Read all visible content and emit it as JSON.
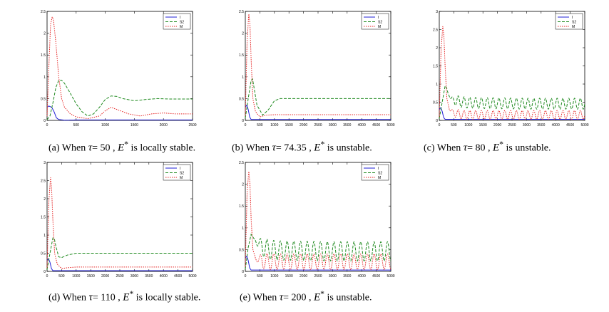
{
  "colors": {
    "I": "#1f1fd6",
    "S2": "#1f8a1f",
    "M": "#e52222",
    "axis": "#000000"
  },
  "chart_data": [
    {
      "type": "line",
      "xlim": [
        0,
        2500
      ],
      "ylim": [
        0,
        2.5
      ],
      "xticks": [
        0,
        500,
        1000,
        1500,
        2000,
        2500
      ],
      "xtick_labels": [
        "0",
        "500",
        "1000",
        "1500",
        "2000",
        "2500"
      ],
      "yticks": [
        0,
        0.5,
        1,
        1.5,
        2,
        2.5
      ],
      "ytick_labels": [
        "0",
        "0.5",
        "1",
        "1.5",
        "2",
        "2.5"
      ],
      "legend_position": "top-right",
      "series": [
        {
          "name": "I",
          "x": [
            0,
            30,
            80,
            120,
            160,
            200,
            300,
            500,
            2500
          ],
          "y": [
            0.3,
            0.33,
            0.3,
            0.2,
            0.06,
            0.02,
            0.005,
            0.01,
            0.01
          ]
        },
        {
          "name": "S2",
          "x": [
            0,
            50,
            100,
            150,
            200,
            250,
            300,
            400,
            500,
            600,
            700,
            800,
            900,
            1000,
            1100,
            1200,
            1300,
            1500,
            1700,
            1900,
            2100,
            2300,
            2500
          ],
          "y": [
            0.02,
            0.1,
            0.4,
            0.75,
            0.92,
            0.92,
            0.85,
            0.62,
            0.38,
            0.2,
            0.1,
            0.15,
            0.3,
            0.48,
            0.56,
            0.55,
            0.5,
            0.45,
            0.48,
            0.5,
            0.49,
            0.49,
            0.49
          ]
        },
        {
          "name": "M",
          "x": [
            0,
            30,
            60,
            90,
            110,
            150,
            200,
            250,
            300,
            400,
            500,
            700,
            900,
            1000,
            1100,
            1200,
            1400,
            1600,
            1800,
            2000,
            2200,
            2500
          ],
          "y": [
            0.1,
            1.2,
            2.2,
            2.38,
            2.3,
            1.8,
            1.0,
            0.5,
            0.3,
            0.15,
            0.08,
            0.04,
            0.1,
            0.22,
            0.3,
            0.25,
            0.15,
            0.1,
            0.15,
            0.17,
            0.15,
            0.15
          ]
        }
      ]
    },
    {
      "type": "line",
      "xlim": [
        0,
        5000
      ],
      "ylim": [
        0,
        2.5
      ],
      "xticks": [
        0,
        500,
        1000,
        1500,
        2000,
        2500,
        3000,
        3500,
        4000,
        4500,
        5000
      ],
      "xtick_labels": [
        "0",
        "500",
        "1000",
        "1500",
        "2000",
        "2500",
        "3000",
        "3500",
        "4000",
        "4500",
        "5000"
      ],
      "yticks": [
        0,
        0.5,
        1,
        1.5,
        2,
        2.5
      ],
      "ytick_labels": [
        "0",
        "0.5",
        "1",
        "1.5",
        "2",
        "2.5"
      ],
      "legend_position": "top-right",
      "series": [
        {
          "name": "I",
          "x": [
            0,
            50,
            100,
            150,
            200,
            400,
            5000
          ],
          "y": [
            0.3,
            0.35,
            0.25,
            0.08,
            0.02,
            0.02,
            0.02
          ]
        },
        {
          "name": "S2",
          "x": [
            0,
            100,
            200,
            250,
            300,
            400,
            600,
            800,
            1000,
            1200,
            1500,
            2000,
            5000
          ],
          "y": [
            0.05,
            0.5,
            0.92,
            0.95,
            0.75,
            0.35,
            0.12,
            0.25,
            0.45,
            0.5,
            0.5,
            0.5,
            0.5
          ]
        },
        {
          "name": "M",
          "x": [
            0,
            60,
            120,
            160,
            200,
            260,
            350,
            500,
            700,
            1000,
            1500,
            2000,
            5000
          ],
          "y": [
            0.1,
            1.8,
            2.45,
            2.2,
            1.4,
            0.5,
            0.2,
            0.08,
            0.12,
            0.13,
            0.13,
            0.13,
            0.13
          ]
        }
      ]
    },
    {
      "type": "line",
      "xlim": [
        0,
        5000
      ],
      "ylim": [
        0,
        3
      ],
      "xticks": [
        0,
        500,
        1000,
        1500,
        2000,
        2500,
        3000,
        3500,
        4000,
        4500,
        5000
      ],
      "xtick_labels": [
        "0",
        "500",
        "1000",
        "1500",
        "2000",
        "2500",
        "3000",
        "3500",
        "4000",
        "4500",
        "5000"
      ],
      "yticks": [
        0,
        0.5,
        1,
        1.5,
        2,
        2.5,
        3
      ],
      "ytick_labels": [
        "0",
        "0.5",
        "1",
        "1.5",
        "2",
        "2.5",
        "3"
      ],
      "legend_position": "top-right",
      "series": [
        {
          "name": "I",
          "x": [
            0,
            50,
            100,
            150,
            200,
            300,
            5000
          ],
          "y": [
            0.3,
            0.35,
            0.25,
            0.08,
            0.03,
            0.03,
            0.03
          ]
        },
        {
          "name": "S2",
          "x": [
            0,
            100,
            200,
            250,
            300,
            400,
            500,
            800,
            1200,
            2000,
            3000,
            4000,
            5000
          ],
          "y": [
            0.05,
            0.5,
            0.95,
            0.9,
            0.75,
            0.6,
            0.55,
            0.5,
            0.48,
            0.47,
            0.46,
            0.46,
            0.46
          ],
          "oscillation_amplitude": 0.15,
          "oscillation_period": 200
        },
        {
          "name": "M",
          "x": [
            0,
            60,
            120,
            160,
            200,
            260,
            350,
            500,
            800,
            1200,
            2000,
            3000,
            4000,
            5000
          ],
          "y": [
            0.1,
            1.9,
            2.6,
            2.3,
            1.5,
            0.6,
            0.3,
            0.2,
            0.15,
            0.15,
            0.15,
            0.15,
            0.15,
            0.15
          ],
          "oscillation_amplitude": 0.12,
          "oscillation_period": 200
        }
      ]
    },
    {
      "type": "line",
      "xlim": [
        0,
        5000
      ],
      "ylim": [
        0,
        3
      ],
      "xticks": [
        0,
        500,
        1000,
        1500,
        2000,
        2500,
        3000,
        3500,
        4000,
        4500,
        5000
      ],
      "xtick_labels": [
        "0",
        "500",
        "1000",
        "1500",
        "2000",
        "2500",
        "3000",
        "3500",
        "4000",
        "4500",
        "5000"
      ],
      "yticks": [
        0,
        0.5,
        1,
        1.5,
        2,
        2.5,
        3
      ],
      "ytick_labels": [
        "0",
        "0.5",
        "1",
        "1.5",
        "2",
        "2.5",
        "3"
      ],
      "legend_position": "top-right",
      "series": [
        {
          "name": "I",
          "x": [
            0,
            50,
            100,
            150,
            200,
            400,
            5000
          ],
          "y": [
            0.3,
            0.35,
            0.25,
            0.08,
            0.02,
            0.02,
            0.02
          ]
        },
        {
          "name": "S2",
          "x": [
            0,
            100,
            200,
            250,
            300,
            400,
            500,
            700,
            1000,
            1500,
            2000,
            5000
          ],
          "y": [
            0.05,
            0.5,
            0.92,
            0.9,
            0.7,
            0.4,
            0.38,
            0.45,
            0.5,
            0.5,
            0.5,
            0.5
          ]
        },
        {
          "name": "M",
          "x": [
            0,
            60,
            120,
            160,
            200,
            260,
            350,
            500,
            700,
            1000,
            1500,
            2000,
            5000
          ],
          "y": [
            0.1,
            1.9,
            2.6,
            2.2,
            1.4,
            0.5,
            0.2,
            0.08,
            0.1,
            0.12,
            0.12,
            0.12,
            0.12
          ]
        }
      ]
    },
    {
      "type": "line",
      "xlim": [
        0,
        5000
      ],
      "ylim": [
        0,
        2.5
      ],
      "xticks": [
        0,
        500,
        1000,
        1500,
        2000,
        2500,
        3000,
        3500,
        4000,
        4500,
        5000
      ],
      "xtick_labels": [
        "0",
        "500",
        "1000",
        "1500",
        "2000",
        "2500",
        "3000",
        "3500",
        "4000",
        "4500",
        "5000"
      ],
      "yticks": [
        0,
        0.5,
        1,
        1.5,
        2,
        2.5
      ],
      "ytick_labels": [
        "0",
        "0.5",
        "1",
        "1.5",
        "2",
        "2.5"
      ],
      "legend_position": "top-right",
      "series": [
        {
          "name": "I",
          "x": [
            0,
            50,
            100,
            150,
            200,
            300,
            5000
          ],
          "y": [
            0.3,
            0.35,
            0.25,
            0.08,
            0.03,
            0.03,
            0.03
          ]
        },
        {
          "name": "S2",
          "x": [
            0,
            100,
            200,
            300,
            500,
            800,
            1200,
            2000,
            3000,
            4000,
            5000
          ],
          "y": [
            0.05,
            0.55,
            0.85,
            0.75,
            0.6,
            0.5,
            0.48,
            0.47,
            0.46,
            0.46,
            0.46
          ],
          "oscillation_amplitude": 0.22,
          "oscillation_period": 230
        },
        {
          "name": "M",
          "x": [
            0,
            60,
            120,
            160,
            200,
            260,
            350,
            500,
            800,
            1200,
            2000,
            3000,
            4000,
            5000
          ],
          "y": [
            0.1,
            1.8,
            2.3,
            2.0,
            1.2,
            0.5,
            0.3,
            0.25,
            0.22,
            0.22,
            0.22,
            0.22,
            0.22,
            0.22
          ],
          "oscillation_amplitude": 0.18,
          "oscillation_period": 230
        }
      ]
    }
  ],
  "captions": [
    {
      "prefix": "(a) When ",
      "symbol": "τ",
      "value": "= 50 , ",
      "eq": "E",
      "sup": "*",
      "suffix": " is locally stable."
    },
    {
      "prefix": "(b) When ",
      "symbol": "τ",
      "value": "= 74.35 , ",
      "eq": "E",
      "sup": "*",
      "suffix": " is unstable."
    },
    {
      "prefix": "(c) When ",
      "symbol": "τ",
      "value": "= 80 , ",
      "eq": "E",
      "sup": "*",
      "suffix": " is unstable."
    },
    {
      "prefix": "(d) When ",
      "symbol": "τ",
      "value": "= 110 , ",
      "eq": "E",
      "sup": "*",
      "suffix": " is locally stable."
    },
    {
      "prefix": "(e) When ",
      "symbol": "τ",
      "value": "= 200 , ",
      "eq": "E",
      "sup": "*",
      "suffix": " is unstable."
    }
  ]
}
